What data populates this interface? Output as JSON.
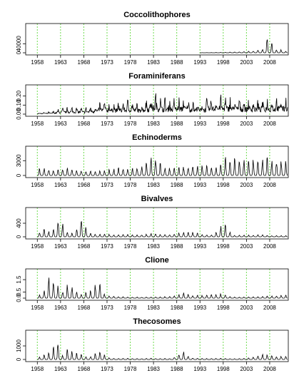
{
  "chart_data": [
    {
      "type": "line",
      "title": "Coccolithophores",
      "ylim": [
        0,
        120000
      ],
      "yticks": [
        "0",
        "40000"
      ],
      "ytick_values": [
        0,
        40000
      ],
      "start_year": 1993,
      "series": [
        {
          "color": "#000000",
          "values": [
            [
              1993,
              200
            ],
            [
              1995,
              800
            ],
            [
              1997,
              1500
            ],
            [
              1999,
              2500
            ],
            [
              2000,
              5000
            ],
            [
              2001,
              3000
            ],
            [
              2002,
              8000
            ],
            [
              2003,
              4000
            ],
            [
              2004,
              12000
            ],
            [
              2005,
              9000
            ],
            [
              2006,
              22000
            ],
            [
              2006.7,
              15000
            ],
            [
              2007.3,
              105000
            ],
            [
              2007.8,
              40000
            ],
            [
              2008.3,
              62000
            ],
            [
              2008.8,
              25000
            ],
            [
              2009.5,
              15000
            ],
            [
              2010.2,
              18000
            ],
            [
              2011,
              8000
            ]
          ]
        }
      ]
    },
    {
      "type": "line",
      "title": "Foraminiferans",
      "ylim": [
        0,
        0.3
      ],
      "yticks": [
        "0.00",
        "0.10",
        "0.20"
      ],
      "ytick_values": [
        0,
        0.1,
        0.2
      ],
      "start_year": 1958,
      "series": [
        {
          "color": "#000000",
          "values": [
            [
              1958,
              0.02
            ],
            [
              1961,
              0.03
            ],
            [
              1963.5,
              0.08
            ],
            [
              1966,
              0.09
            ],
            [
              1968,
              0.08
            ],
            [
              1970,
              0.11
            ],
            [
              1972,
              0.17
            ],
            [
              1975,
              0.15
            ],
            [
              1978,
              0.18
            ],
            [
              1980,
              0.14
            ],
            [
              1982,
              0.22
            ],
            [
              1983.5,
              0.27
            ],
            [
              1985,
              0.2
            ],
            [
              1988,
              0.2
            ],
            [
              1990,
              0.22
            ],
            [
              1993,
              0.15
            ],
            [
              1995,
              0.21
            ],
            [
              1997,
              0.23
            ],
            [
              1999,
              0.22
            ],
            [
              2001,
              0.21
            ],
            [
              2003,
              0.2
            ],
            [
              2005,
              0.19
            ],
            [
              2007,
              0.2
            ],
            [
              2010,
              0.22
            ]
          ]
        }
      ]
    },
    {
      "type": "line",
      "title": "Echinoderms",
      "ylim": [
        0,
        5500
      ],
      "yticks": [
        "0",
        "3000"
      ],
      "ytick_values": [
        0,
        3000
      ],
      "start_year": 1958,
      "series": [
        {
          "color": "#000000",
          "values": [
            [
              1958,
              1500
            ],
            [
              1960,
              1600
            ],
            [
              1962,
              1300
            ],
            [
              1964,
              1700
            ],
            [
              1966,
              1200
            ],
            [
              1968,
              1200
            ],
            [
              1970,
              900
            ],
            [
              1972,
              1100
            ],
            [
              1974,
              1400
            ],
            [
              1976,
              1800
            ],
            [
              1978,
              1600
            ],
            [
              1980,
              1800
            ],
            [
              1983,
              4800
            ],
            [
              1985,
              2000
            ],
            [
              1987,
              1700
            ],
            [
              1989,
              1900
            ],
            [
              1991,
              2400
            ],
            [
              1995,
              2200
            ],
            [
              1997,
              2400
            ],
            [
              1998.5,
              4400
            ],
            [
              2000,
              4200
            ],
            [
              2002,
              3800
            ],
            [
              2004,
              3600
            ],
            [
              2006,
              3900
            ],
            [
              2008,
              3900
            ],
            [
              2010,
              3500
            ]
          ]
        }
      ]
    },
    {
      "type": "line",
      "title": "Bivalves",
      "ylim": [
        0,
        800
      ],
      "yticks": [
        "0",
        "400"
      ],
      "ytick_values": [
        0,
        400
      ],
      "start_year": 1958,
      "series": [
        {
          "color": "#000000",
          "values": [
            [
              1958,
              100
            ],
            [
              1959.5,
              280
            ],
            [
              1961,
              120
            ],
            [
              1963,
              720
            ],
            [
              1964.5,
              150
            ],
            [
              1966,
              100
            ],
            [
              1967.5,
              700
            ],
            [
              1969,
              120
            ],
            [
              1971,
              80
            ],
            [
              1973,
              90
            ],
            [
              1975,
              60
            ],
            [
              1977,
              80
            ],
            [
              1979,
              60
            ],
            [
              1981,
              90
            ],
            [
              1983,
              120
            ],
            [
              1985,
              80
            ],
            [
              1987,
              100
            ],
            [
              1989,
              150
            ],
            [
              1991,
              190
            ],
            [
              1994,
              60
            ],
            [
              1996,
              80
            ],
            [
              1998,
              460
            ],
            [
              2000,
              50
            ],
            [
              2003,
              60
            ],
            [
              2006,
              70
            ],
            [
              2008,
              40
            ],
            [
              2011,
              40
            ]
          ]
        }
      ]
    },
    {
      "type": "line",
      "title": "Clione",
      "ylim": [
        0,
        2.2
      ],
      "yticks": [
        "0.0",
        "0.5",
        "1.5"
      ],
      "ytick_values": [
        0,
        0.5,
        1.5
      ],
      "start_year": 1958,
      "series": [
        {
          "color": "#000000",
          "values": [
            [
              1958,
              0.1
            ],
            [
              1959.3,
              0.6
            ],
            [
              1960.5,
              2.0
            ],
            [
              1961.8,
              1.9
            ],
            [
              1963,
              0.5
            ],
            [
              1964.5,
              1.3
            ],
            [
              1966,
              0.8
            ],
            [
              1967.5,
              0.4
            ],
            [
              1969.5,
              0.7
            ],
            [
              1971,
              1.7
            ],
            [
              1972.5,
              0.3
            ],
            [
              1975,
              0.15
            ],
            [
              1978,
              0.1
            ],
            [
              1983,
              0.1
            ],
            [
              1987,
              0.15
            ],
            [
              1989.5,
              0.5
            ],
            [
              1991,
              0.3
            ],
            [
              1994,
              0.25
            ],
            [
              1998,
              0.4
            ],
            [
              2000,
              0.1
            ],
            [
              2003,
              0.1
            ],
            [
              2006,
              0.15
            ],
            [
              2009,
              0.2
            ],
            [
              2011,
              0.3
            ]
          ]
        }
      ]
    },
    {
      "type": "line",
      "title": "Thecosomes",
      "ylim": [
        0,
        2000
      ],
      "yticks": [
        "0",
        "1000"
      ],
      "ytick_values": [
        0,
        1000
      ],
      "start_year": 1958,
      "series": [
        {
          "color": "#000000",
          "values": [
            [
              1958,
              100
            ],
            [
              1959,
              300
            ],
            [
              1960,
              450
            ],
            [
              1961,
              600
            ],
            [
              1962.3,
              1750
            ],
            [
              1963.5,
              300
            ],
            [
              1964.5,
              850
            ],
            [
              1965.5,
              650
            ],
            [
              1966.5,
              500
            ],
            [
              1967.5,
              400
            ],
            [
              1969,
              180
            ],
            [
              1970.5,
              500
            ],
            [
              1971.5,
              700
            ],
            [
              1973,
              150
            ],
            [
              1975,
              80
            ],
            [
              1977,
              100
            ],
            [
              1980,
              80
            ],
            [
              1983,
              100
            ],
            [
              1987,
              80
            ],
            [
              1989.3,
              700
            ],
            [
              1991,
              150
            ],
            [
              1994,
              80
            ],
            [
              1997,
              100
            ],
            [
              2000,
              60
            ],
            [
              2002,
              80
            ],
            [
              2004,
              150
            ],
            [
              2006,
              400
            ],
            [
              2008,
              450
            ],
            [
              2009,
              200
            ],
            [
              2010,
              300
            ]
          ]
        }
      ]
    }
  ],
  "x_ticks": [
    "1958",
    "1963",
    "1968",
    "1973",
    "1978",
    "1983",
    "1988",
    "1993",
    "1998",
    "2003",
    "2008"
  ],
  "x_tick_values": [
    1958,
    1963,
    1968,
    1973,
    1978,
    1983,
    1988,
    1993,
    1998,
    2003,
    2008
  ],
  "xlim": [
    1955.5,
    2012
  ],
  "gridline_color": "#6fdc4f"
}
